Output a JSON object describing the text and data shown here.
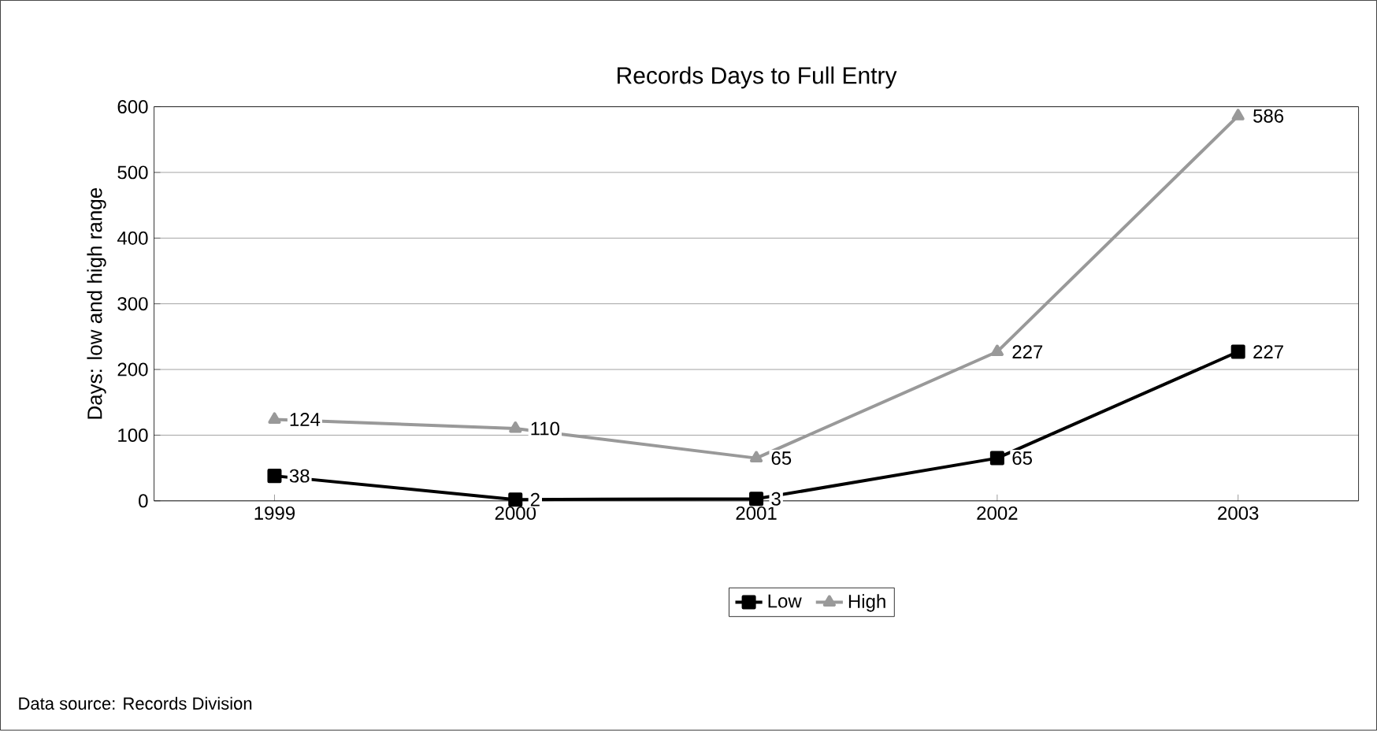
{
  "chart_data": {
    "type": "line",
    "title": "Records Days to Full Entry",
    "ylabel": "Days: low and high range",
    "categories": [
      "1999",
      "2000",
      "2001",
      "2002",
      "2003"
    ],
    "series": [
      {
        "name": "Low",
        "color": "#000000",
        "values": [
          38,
          2,
          3,
          65,
          227
        ],
        "marker": "square"
      },
      {
        "name": "High",
        "color": "#999999",
        "values": [
          124,
          110,
          65,
          227,
          586
        ],
        "marker": "triangle"
      }
    ],
    "ylim": [
      0,
      600
    ],
    "yticks": [
      0,
      100,
      200,
      300,
      400,
      500,
      600
    ],
    "grid": "y",
    "legend": "bottom",
    "data_labels": true,
    "line_style": "solid",
    "annotations": [
      "Data source: Records Division"
    ]
  }
}
